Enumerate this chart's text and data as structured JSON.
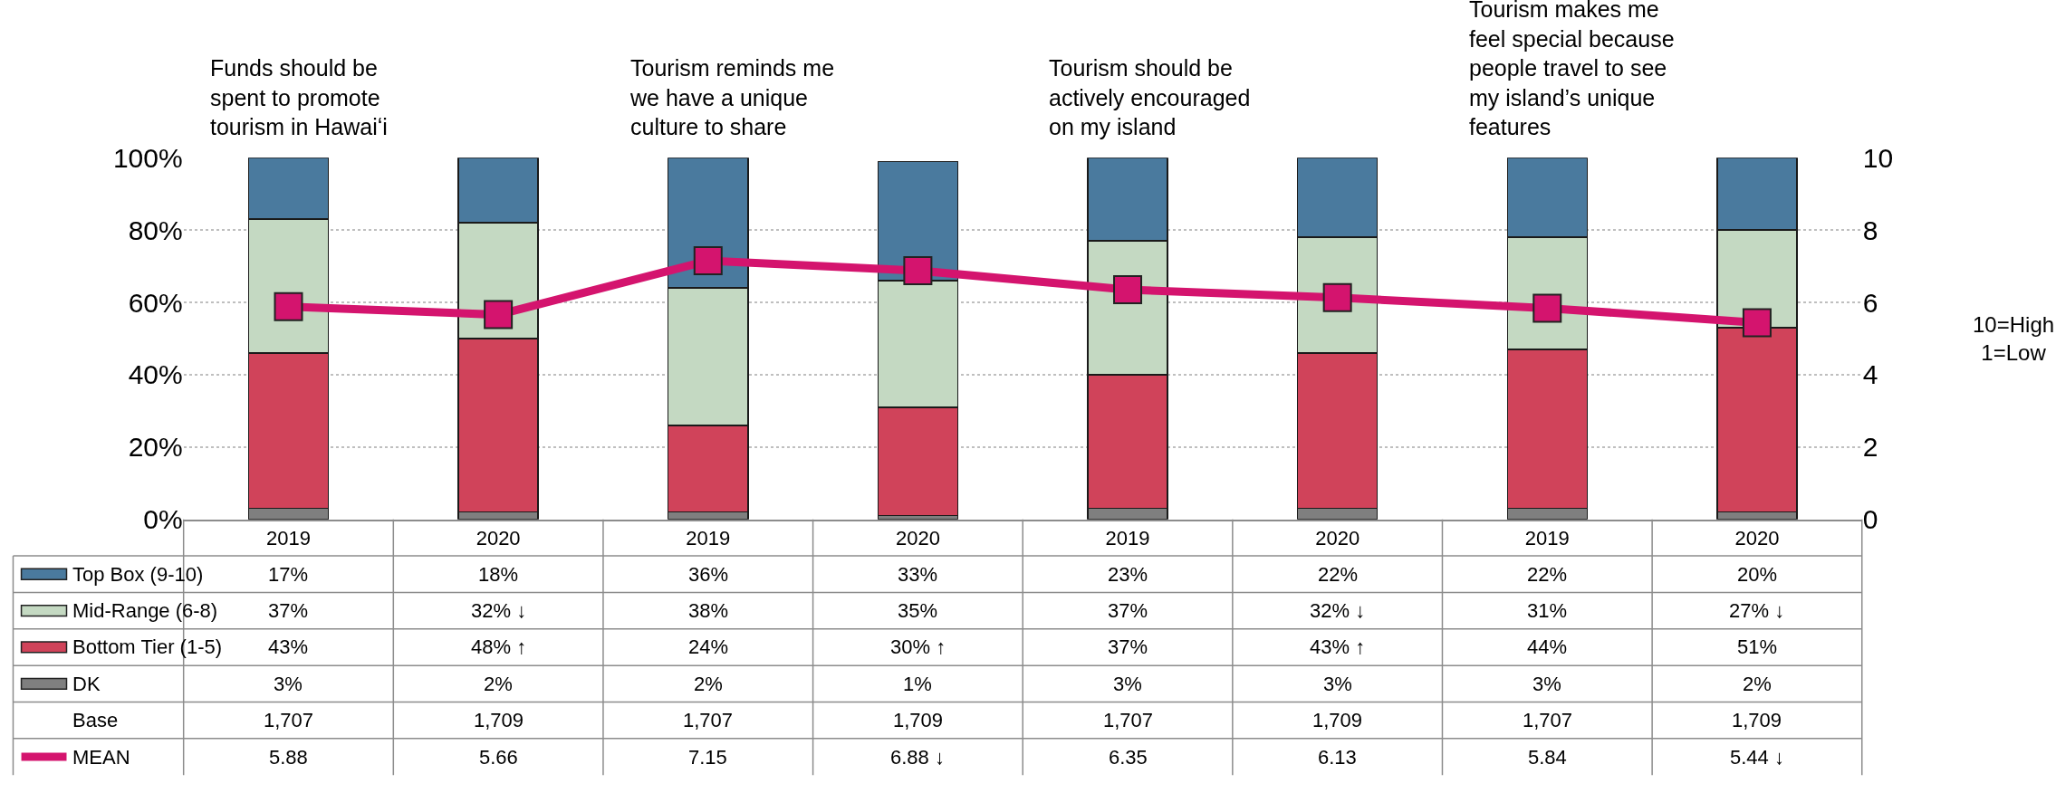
{
  "chart_data": {
    "type": "bar",
    "stacked": true,
    "categories": [
      "2019",
      "2020",
      "2019",
      "2020",
      "2019",
      "2020",
      "2019",
      "2020"
    ],
    "series": [
      {
        "name": "DK",
        "color": "#7f7f7f",
        "values": [
          3,
          2,
          2,
          1,
          3,
          3,
          3,
          2
        ],
        "value_labels": [
          "3%",
          "2%",
          "2%",
          "1%",
          "3%",
          "3%",
          "3%",
          "2%"
        ]
      },
      {
        "name": "Bottom Tier (1-5)",
        "color": "#d0435a",
        "values": [
          43,
          48,
          24,
          30,
          37,
          43,
          44,
          51
        ],
        "value_labels": [
          "43%",
          "48% ↑",
          "24%",
          "30% ↑",
          "37%",
          "43% ↑",
          "44%",
          "51%"
        ]
      },
      {
        "name": "Mid-Range (6-8)",
        "color": "#c4d9c2",
        "values": [
          37,
          32,
          38,
          35,
          37,
          32,
          31,
          27
        ],
        "value_labels": [
          "37%",
          "32% ↓",
          "38%",
          "35%",
          "37%",
          "32% ↓",
          "31%",
          "27% ↓"
        ]
      },
      {
        "name": "Top Box (9-10)",
        "color": "#4a7a9e",
        "values": [
          17,
          18,
          36,
          33,
          23,
          22,
          22,
          20
        ],
        "value_labels": [
          "17%",
          "18%",
          "36%",
          "33%",
          "23%",
          "22%",
          "22%",
          "20%"
        ]
      },
      {
        "name": "MEAN",
        "type": "line",
        "axis": "y2",
        "marker": "square",
        "color": "#d4146e",
        "values": [
          5.88,
          5.66,
          7.15,
          6.88,
          6.35,
          6.13,
          5.84,
          5.44
        ],
        "value_labels": [
          "5.88",
          "5.66",
          "7.15",
          "6.88 ↓",
          "6.35",
          "6.13",
          "5.84",
          "5.44 ↓"
        ]
      }
    ],
    "ylim": [
      0,
      100
    ],
    "yticks": [
      {
        "value": 0,
        "label": "0%"
      },
      {
        "value": 20,
        "label": "20%"
      },
      {
        "value": 40,
        "label": "40%"
      },
      {
        "value": 60,
        "label": "60%"
      },
      {
        "value": 80,
        "label": "80%"
      },
      {
        "value": 100,
        "label": "100%"
      }
    ],
    "y2lim": [
      0,
      10
    ],
    "y2ticks": [
      0,
      2,
      4,
      6,
      8,
      10
    ],
    "y2label": "10=High\n1=Low",
    "grid": "y",
    "legend": "bottom left",
    "annotations": [
      "Funds should be spent to promote tourism in Hawaiʻi",
      "Tourism reminds me we have a unique culture to share",
      "Tourism should be actively encouraged on my island",
      "Tourism makes me feel special because people travel to see my island’s unique features",
      "Base",
      "1,707",
      "1,709",
      "1,707",
      "1,709",
      "1,707",
      "1,709",
      "1,707",
      "1,709"
    ]
  }
}
